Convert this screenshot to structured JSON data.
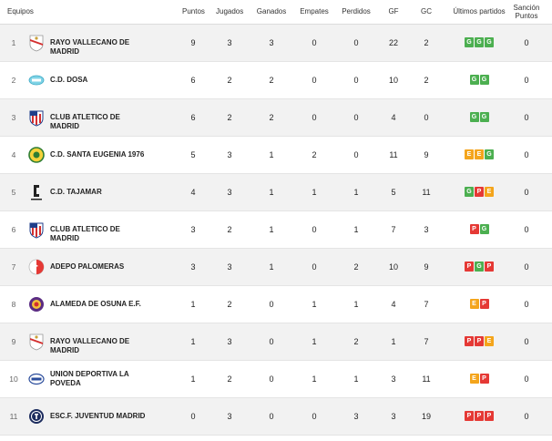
{
  "header": {
    "team": "Equipos",
    "points": "Puntos",
    "played": "Jugados",
    "won": "Ganados",
    "drawn": "Empates",
    "lost": "Perdidos",
    "gf": "GF",
    "gc": "GC",
    "last": "Últimos partidos",
    "sanction": "Sanción Puntos"
  },
  "colors": {
    "win": "#4caf50",
    "draw": "#f4a51c",
    "loss": "#e53935"
  },
  "rows": [
    {
      "pos": "1",
      "name": "RAYO VALLECANO DE MADRID",
      "crest": "rayo-vallecano-crest-icon",
      "pts": "9",
      "pj": "3",
      "pg": "3",
      "pe": "0",
      "pp": "0",
      "gf": "22",
      "gc": "2",
      "last": [
        "G",
        "G",
        "G"
      ],
      "sanc": "0"
    },
    {
      "pos": "2",
      "name": "C.D. DOSA",
      "crest": "cd-dosa-crest-icon",
      "pts": "6",
      "pj": "2",
      "pg": "2",
      "pe": "0",
      "pp": "0",
      "gf": "10",
      "gc": "2",
      "last": [
        "G",
        "G"
      ],
      "sanc": "0"
    },
    {
      "pos": "3",
      "name": "CLUB ATLETICO DE MADRID",
      "crest": "atletico-madrid-crest-icon",
      "pts": "6",
      "pj": "2",
      "pg": "2",
      "pe": "0",
      "pp": "0",
      "gf": "4",
      "gc": "0",
      "last": [
        "G",
        "G"
      ],
      "sanc": "0"
    },
    {
      "pos": "4",
      "name": "C.D. SANTA EUGENIA 1976",
      "crest": "santa-eugenia-crest-icon",
      "pts": "5",
      "pj": "3",
      "pg": "1",
      "pe": "2",
      "pp": "0",
      "gf": "11",
      "gc": "9",
      "last": [
        "E",
        "E",
        "G"
      ],
      "sanc": "0"
    },
    {
      "pos": "5",
      "name": "C.D. TAJAMAR",
      "crest": "tajamar-crest-icon",
      "pts": "4",
      "pj": "3",
      "pg": "1",
      "pe": "1",
      "pp": "1",
      "gf": "5",
      "gc": "11",
      "last": [
        "G",
        "P",
        "E"
      ],
      "sanc": "0"
    },
    {
      "pos": "6",
      "name": "CLUB ATLETICO DE MADRID",
      "crest": "atletico-madrid-crest-icon",
      "pts": "3",
      "pj": "2",
      "pg": "1",
      "pe": "0",
      "pp": "1",
      "gf": "7",
      "gc": "3",
      "last": [
        "P",
        "G"
      ],
      "sanc": "0"
    },
    {
      "pos": "7",
      "name": "ADEPO PALOMERAS",
      "crest": "adepo-palomeras-crest-icon",
      "pts": "3",
      "pj": "3",
      "pg": "1",
      "pe": "0",
      "pp": "2",
      "gf": "10",
      "gc": "9",
      "last": [
        "P",
        "G",
        "P"
      ],
      "sanc": "0"
    },
    {
      "pos": "8",
      "name": "ALAMEDA DE OSUNA E.F.",
      "crest": "alameda-osuna-crest-icon",
      "pts": "1",
      "pj": "2",
      "pg": "0",
      "pe": "1",
      "pp": "1",
      "gf": "4",
      "gc": "7",
      "last": [
        "E",
        "P"
      ],
      "sanc": "0"
    },
    {
      "pos": "9",
      "name": "RAYO VALLECANO DE MADRID",
      "crest": "rayo-vallecano-crest-icon",
      "pts": "1",
      "pj": "3",
      "pg": "0",
      "pe": "1",
      "pp": "2",
      "gf": "1",
      "gc": "7",
      "last": [
        "P",
        "P",
        "E"
      ],
      "sanc": "0"
    },
    {
      "pos": "10",
      "name": "UNION DEPORTIVA LA POVEDA",
      "crest": "ud-poveda-crest-icon",
      "pts": "1",
      "pj": "2",
      "pg": "0",
      "pe": "1",
      "pp": "1",
      "gf": "3",
      "gc": "11",
      "last": [
        "E",
        "P"
      ],
      "sanc": "0"
    },
    {
      "pos": "11",
      "name": "ESC.F. JUVENTUD MADRID",
      "crest": "juventud-madrid-crest-icon",
      "pts": "0",
      "pj": "3",
      "pg": "0",
      "pe": "0",
      "pp": "3",
      "gf": "3",
      "gc": "19",
      "last": [
        "P",
        "P",
        "P"
      ],
      "sanc": "0"
    }
  ]
}
